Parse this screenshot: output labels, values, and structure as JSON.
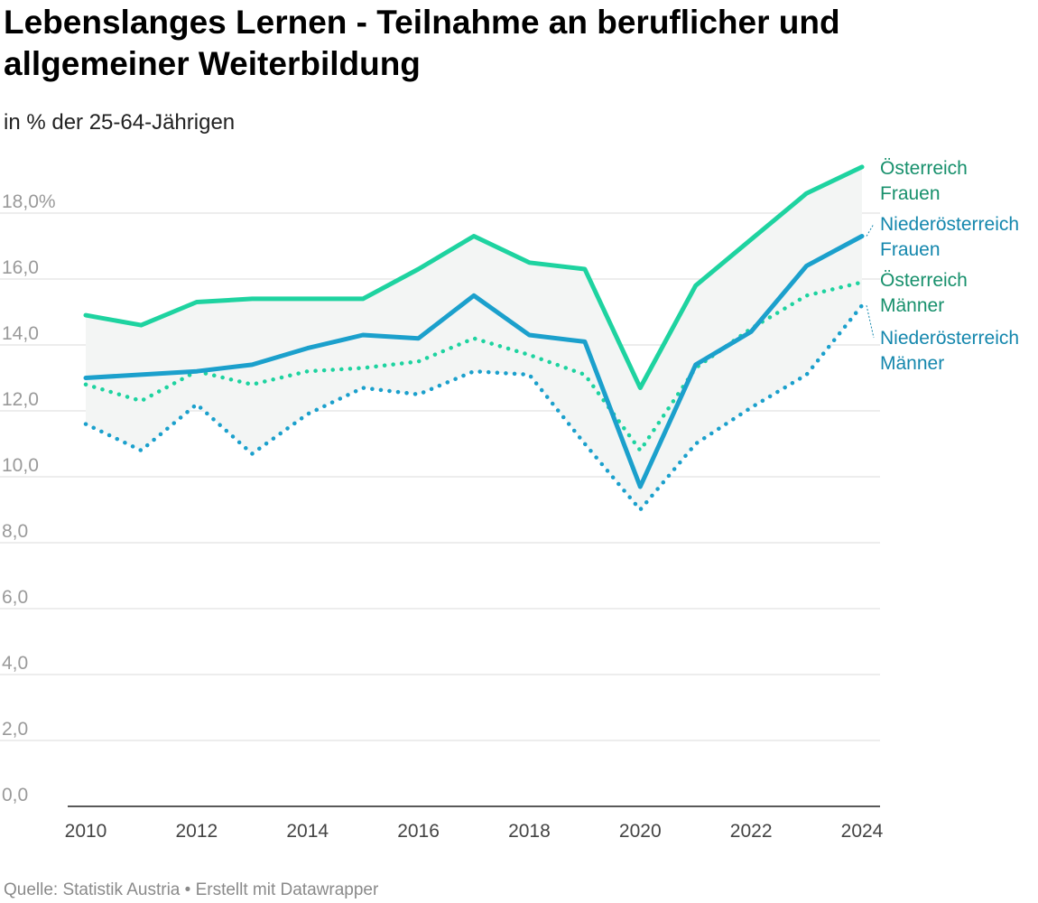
{
  "header": {
    "title": "Lebenslanges Lernen - Teilnahme an beruflicher und allgemeiner Weiterbildung",
    "subtitle": "in % der 25-64-Jährigen"
  },
  "footer": {
    "source": "Quelle: Statistik Austria • Erstellt mit Datawrapper"
  },
  "chart_data": {
    "type": "line",
    "title": "Lebenslanges Lernen - Teilnahme an beruflicher und allgemeiner Weiterbildung",
    "subtitle": "in % der 25-64-Jährigen",
    "x": [
      2010,
      2011,
      2012,
      2013,
      2014,
      2015,
      2016,
      2017,
      2018,
      2019,
      2020,
      2021,
      2022,
      2023,
      2024
    ],
    "x_ticks": [
      "2010",
      "2012",
      "2014",
      "2016",
      "2018",
      "2020",
      "2022",
      "2024"
    ],
    "y_ticks": [
      "0,0",
      "2,0",
      "4,0",
      "6,0",
      "8,0",
      "10,0",
      "12,0",
      "14,0",
      "16,0",
      "18,0%"
    ],
    "ylim": [
      0,
      19.5
    ],
    "grid": true,
    "range_fill": "#f3f5f4",
    "series": [
      {
        "name": "Österreich Frauen",
        "label_lines": [
          "Österreich",
          "Frauen"
        ],
        "color": "#1ed3a0",
        "label_color": "#17906c",
        "style": "solid",
        "values": [
          14.9,
          14.6,
          15.3,
          15.4,
          15.4,
          15.4,
          16.3,
          17.3,
          16.5,
          16.3,
          12.7,
          15.8,
          17.2,
          18.6,
          19.4
        ]
      },
      {
        "name": "Niederösterreich Frauen",
        "label_lines": [
          "Niederösterreich",
          "Frauen"
        ],
        "color": "#1ba0cc",
        "label_color": "#1487ad",
        "style": "solid",
        "values": [
          13.0,
          13.1,
          13.2,
          13.4,
          13.9,
          14.3,
          14.2,
          15.5,
          14.3,
          14.1,
          9.7,
          13.4,
          14.4,
          16.4,
          17.3
        ]
      },
      {
        "name": "Österreich Männer",
        "label_lines": [
          "Österreich",
          "Männer"
        ],
        "color": "#1ed3a0",
        "label_color": "#17906c",
        "style": "dotted",
        "values": [
          12.8,
          12.3,
          13.2,
          12.8,
          13.2,
          13.3,
          13.5,
          14.2,
          13.7,
          13.1,
          10.8,
          13.3,
          14.5,
          15.5,
          15.9
        ]
      },
      {
        "name": "Niederösterreich Männer",
        "label_lines": [
          "Niederösterreich",
          "Männer"
        ],
        "color": "#1ba0cc",
        "label_color": "#1487ad",
        "style": "dotted",
        "values": [
          11.6,
          10.8,
          12.2,
          10.7,
          11.9,
          12.7,
          12.5,
          13.2,
          13.1,
          11.0,
          9.0,
          11.0,
          12.1,
          13.1,
          15.2
        ]
      }
    ]
  }
}
